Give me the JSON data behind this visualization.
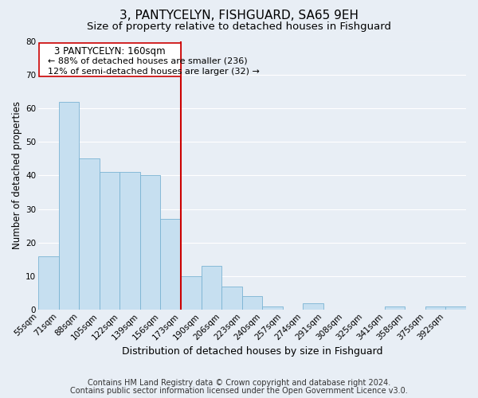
{
  "title": "3, PANTYCELYN, FISHGUARD, SA65 9EH",
  "subtitle": "Size of property relative to detached houses in Fishguard",
  "xlabel": "Distribution of detached houses by size in Fishguard",
  "ylabel": "Number of detached properties",
  "bar_labels": [
    "55sqm",
    "71sqm",
    "88sqm",
    "105sqm",
    "122sqm",
    "139sqm",
    "156sqm",
    "173sqm",
    "190sqm",
    "206sqm",
    "223sqm",
    "240sqm",
    "257sqm",
    "274sqm",
    "291sqm",
    "308sqm",
    "325sqm",
    "341sqm",
    "358sqm",
    "375sqm",
    "392sqm"
  ],
  "bar_values": [
    16,
    62,
    45,
    41,
    41,
    40,
    27,
    10,
    13,
    7,
    4,
    1,
    0,
    2,
    0,
    0,
    0,
    1,
    0,
    1,
    1
  ],
  "bar_color": "#c6dff0",
  "bar_edge_color": "#7ab3d3",
  "vline_color": "#cc0000",
  "ylim": [
    0,
    80
  ],
  "yticks": [
    0,
    10,
    20,
    30,
    40,
    50,
    60,
    70,
    80
  ],
  "annotation_title": "3 PANTYCELYN: 160sqm",
  "annotation_line1": "← 88% of detached houses are smaller (236)",
  "annotation_line2": "12% of semi-detached houses are larger (32) →",
  "annotation_box_color": "#ffffff",
  "annotation_box_edge": "#cc0000",
  "footer_line1": "Contains HM Land Registry data © Crown copyright and database right 2024.",
  "footer_line2": "Contains public sector information licensed under the Open Government Licence v3.0.",
  "background_color": "#e8eef5",
  "grid_color": "#ffffff",
  "title_fontsize": 11,
  "subtitle_fontsize": 9.5,
  "xlabel_fontsize": 9,
  "ylabel_fontsize": 8.5,
  "footer_fontsize": 7,
  "tick_fontsize": 7.5,
  "ann_title_fontsize": 8.5,
  "ann_body_fontsize": 8
}
